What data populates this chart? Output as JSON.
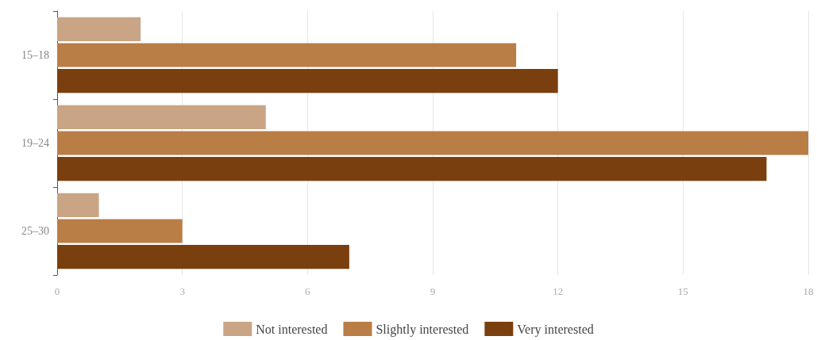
{
  "chart_data": {
    "type": "bar",
    "orientation": "horizontal",
    "categories": [
      "15–18",
      "19–24",
      "25–30"
    ],
    "series": [
      {
        "name": "Not interested",
        "color": "#c9a585",
        "values": [
          2,
          5,
          1
        ]
      },
      {
        "name": "Slightly interested",
        "color": "#b97d46",
        "values": [
          11,
          18,
          3
        ]
      },
      {
        "name": "Very interested",
        "color": "#7a3f0e",
        "values": [
          12,
          17,
          7
        ]
      }
    ],
    "xlim": [
      0,
      18
    ],
    "xticks": [
      0,
      3,
      6,
      9,
      12,
      15,
      18
    ],
    "grid": "x",
    "legend": "bottom"
  }
}
